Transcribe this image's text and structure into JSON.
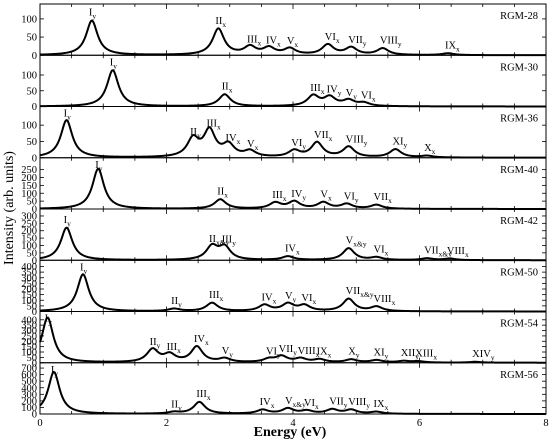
{
  "chart_data": {
    "type": "line",
    "xlabel": "Energy (eV)",
    "ylabel": "Intensity (arb. units)",
    "xlim": [
      0,
      8
    ],
    "x_ticks": [
      "0",
      "2",
      "4",
      "6",
      "8"
    ],
    "panels": [
      {
        "name": "RGM-28",
        "ylim": [
          0,
          130
        ],
        "y_ticks": [
          "0",
          "50",
          "100"
        ],
        "peaks": [
          {
            "label": "I",
            "sub": "y",
            "x": 0.82,
            "y": 95
          },
          {
            "label": "II",
            "sub": "x",
            "x": 2.82,
            "y": 72
          },
          {
            "label": "III",
            "sub": "x",
            "x": 3.32,
            "y": 22
          },
          {
            "label": "IV",
            "sub": "x",
            "x": 3.62,
            "y": 19
          },
          {
            "label": "V",
            "sub": "x",
            "x": 3.95,
            "y": 17
          },
          {
            "label": "VI",
            "sub": "x",
            "x": 4.55,
            "y": 28
          },
          {
            "label": "VII",
            "sub": "y",
            "x": 4.92,
            "y": 20
          },
          {
            "label": "VIII",
            "sub": "y",
            "x": 5.42,
            "y": 18
          },
          {
            "label": "IX",
            "sub": "x",
            "x": 6.45,
            "y": 5
          }
        ]
      },
      {
        "name": "RGM-30",
        "ylim": [
          0,
          150
        ],
        "y_ticks": [
          "0",
          "50",
          "100"
        ],
        "peaks": [
          {
            "label": "I",
            "sub": "y",
            "x": 1.15,
            "y": 115
          },
          {
            "label": "II",
            "sub": "x",
            "x": 2.92,
            "y": 38
          },
          {
            "label": "III",
            "sub": "x",
            "x": 4.32,
            "y": 33
          },
          {
            "label": "IV",
            "sub": "y",
            "x": 4.58,
            "y": 28
          },
          {
            "label": "V",
            "sub": "y",
            "x": 4.88,
            "y": 18
          },
          {
            "label": "VI",
            "sub": "x",
            "x": 5.12,
            "y": 10
          }
        ]
      },
      {
        "name": "RGM-36",
        "ylim": [
          0,
          145
        ],
        "y_ticks": [
          "0",
          "50",
          "100"
        ],
        "peaks": [
          {
            "label": "I",
            "sub": "y",
            "x": 0.42,
            "y": 115
          },
          {
            "label": "II",
            "sub": "y",
            "x": 2.42,
            "y": 55
          },
          {
            "label": "III",
            "sub": "x",
            "x": 2.68,
            "y": 80
          },
          {
            "label": "IV",
            "sub": "x",
            "x": 2.98,
            "y": 36
          },
          {
            "label": "V",
            "sub": "x",
            "x": 3.32,
            "y": 18
          },
          {
            "label": "VI",
            "sub": "y",
            "x": 4.02,
            "y": 20
          },
          {
            "label": "VII",
            "sub": "x",
            "x": 4.38,
            "y": 45
          },
          {
            "label": "VIII",
            "sub": "y",
            "x": 4.88,
            "y": 32
          },
          {
            "label": "XI",
            "sub": "y",
            "x": 5.62,
            "y": 25
          },
          {
            "label": "X",
            "sub": "x",
            "x": 6.12,
            "y": 5
          }
        ]
      },
      {
        "name": "RGM-40",
        "ylim": [
          0,
          300
        ],
        "y_ticks": [
          "0",
          "50",
          "100",
          "150",
          "200",
          "250"
        ],
        "peaks": [
          {
            "label": "I",
            "sub": "y",
            "x": 0.92,
            "y": 255
          },
          {
            "label": "II",
            "sub": "x",
            "x": 2.85,
            "y": 60
          },
          {
            "label": "III",
            "sub": "x",
            "x": 3.72,
            "y": 38
          },
          {
            "label": "IV",
            "sub": "y",
            "x": 4.02,
            "y": 45
          },
          {
            "label": "V",
            "sub": "x",
            "x": 4.48,
            "y": 40
          },
          {
            "label": "VI",
            "sub": "y",
            "x": 4.85,
            "y": 30
          },
          {
            "label": "VII",
            "sub": "x",
            "x": 5.32,
            "y": 25
          }
        ]
      },
      {
        "name": "RGM-42",
        "ylim": [
          0,
          320
        ],
        "y_ticks": [
          "0",
          "50",
          "100",
          "150",
          "200",
          "250",
          "300"
        ],
        "peaks": [
          {
            "label": "I",
            "sub": "y",
            "x": 0.42,
            "y": 220
          },
          {
            "label": "II",
            "sub": "x&y",
            "x": 2.72,
            "y": 90
          },
          {
            "label": "III",
            "sub": "y",
            "x": 2.92,
            "y": 85
          },
          {
            "label": "IV",
            "sub": "x",
            "x": 3.92,
            "y": 25
          },
          {
            "label": "V",
            "sub": "x&y",
            "x": 4.88,
            "y": 80
          },
          {
            "label": "VI",
            "sub": "x",
            "x": 5.32,
            "y": 18
          },
          {
            "label": "VII",
            "sub": "x&y",
            "x": 6.12,
            "y": 12
          },
          {
            "label": "VIII",
            "sub": "x",
            "x": 6.48,
            "y": 10
          }
        ]
      },
      {
        "name": "RGM-50",
        "ylim": [
          0,
          420
        ],
        "y_ticks": [
          "0",
          "50",
          "100",
          "150",
          "200",
          "250",
          "300",
          "350",
          "400"
        ],
        "peaks": [
          {
            "label": "I",
            "sub": "y",
            "x": 0.68,
            "y": 330
          },
          {
            "label": "II",
            "sub": "y",
            "x": 2.12,
            "y": 22
          },
          {
            "label": "III",
            "sub": "x",
            "x": 2.72,
            "y": 75
          },
          {
            "label": "IV",
            "sub": "x",
            "x": 3.55,
            "y": 55
          },
          {
            "label": "V",
            "sub": "y",
            "x": 3.92,
            "y": 65
          },
          {
            "label": "VI",
            "sub": "x",
            "x": 4.18,
            "y": 50
          },
          {
            "label": "VII",
            "sub": "x&y",
            "x": 4.88,
            "y": 110
          },
          {
            "label": "VIII",
            "sub": "x",
            "x": 5.32,
            "y": 40
          }
        ]
      },
      {
        "name": "RGM-54",
        "ylim": [
          0,
          440
        ],
        "y_ticks": [
          "0",
          "50",
          "100",
          "150",
          "200",
          "250",
          "300",
          "350",
          "400"
        ],
        "peaks": [
          {
            "label": "I",
            "sub": "y",
            "x": 0.12,
            "y": 420
          },
          {
            "label": "II",
            "sub": "y",
            "x": 1.78,
            "y": 120
          },
          {
            "label": "III",
            "sub": "x",
            "x": 2.05,
            "y": 70
          },
          {
            "label": "IV",
            "sub": "x",
            "x": 2.48,
            "y": 145
          },
          {
            "label": "V",
            "sub": "y",
            "x": 2.92,
            "y": 35
          },
          {
            "label": "VI",
            "sub": "y",
            "x": 3.62,
            "y": 30
          },
          {
            "label": "VII",
            "sub": "y",
            "x": 3.82,
            "y": 55
          },
          {
            "label": "VIII",
            "sub": "x",
            "x": 4.12,
            "y": 35
          },
          {
            "label": "IX",
            "sub": "x",
            "x": 4.42,
            "y": 28
          },
          {
            "label": "X",
            "sub": "y",
            "x": 4.92,
            "y": 28
          },
          {
            "label": "XI",
            "sub": "y",
            "x": 5.32,
            "y": 22
          },
          {
            "label": "XII",
            "sub": "y",
            "x": 5.75,
            "y": 14
          },
          {
            "label": "XIII",
            "sub": "x",
            "x": 5.98,
            "y": 12
          },
          {
            "label": "XIV",
            "sub": "y",
            "x": 6.88,
            "y": 8
          }
        ]
      },
      {
        "name": "RGM-56",
        "ylim": [
          0,
          720
        ],
        "y_ticks": [
          "0",
          "100",
          "200",
          "300",
          "400",
          "500",
          "600",
          "700"
        ],
        "peaks": [
          {
            "label": "I",
            "sub": "y",
            "x": 0.22,
            "y": 640
          },
          {
            "label": "II",
            "sub": "y",
            "x": 2.12,
            "y": 25
          },
          {
            "label": "III",
            "sub": "x",
            "x": 2.52,
            "y": 180
          },
          {
            "label": "IV",
            "sub": "x",
            "x": 3.52,
            "y": 60
          },
          {
            "label": "V",
            "sub": "x&y",
            "x": 3.92,
            "y": 80
          },
          {
            "label": "VI",
            "sub": "x",
            "x": 4.22,
            "y": 45
          },
          {
            "label": "VII",
            "sub": "y",
            "x": 4.62,
            "y": 65
          },
          {
            "label": "VIII",
            "sub": "y",
            "x": 4.92,
            "y": 60
          },
          {
            "label": "IX",
            "sub": "x",
            "x": 5.32,
            "y": 30
          }
        ]
      }
    ]
  }
}
